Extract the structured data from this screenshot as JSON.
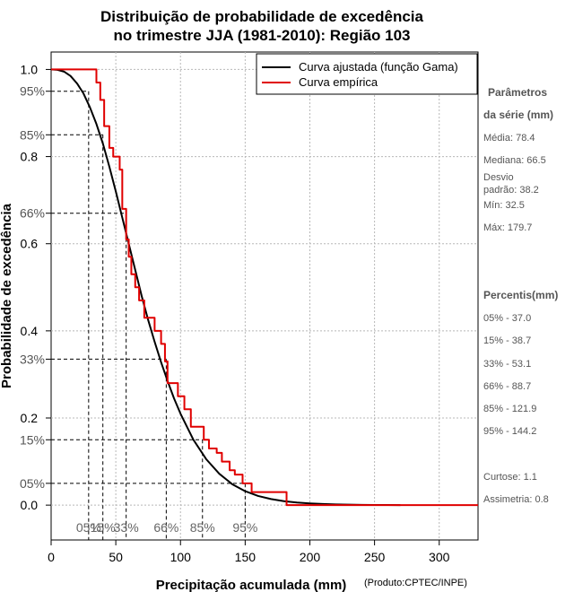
{
  "chart_data": {
    "type": "line",
    "title_line1": "Distribuição de probabilidade de excedência",
    "title_line2": "no trimestre JJA (1981-2010): Região 103",
    "xlabel": "Precipitação acumulada (mm)",
    "ylabel": "Probabilidade de excedência",
    "credit": "(Produto:CPTEC/INPE)",
    "xlim": [
      0,
      330
    ],
    "ylim": [
      -0.08,
      1.04
    ],
    "x_ticks": [
      0,
      50,
      100,
      150,
      200,
      250,
      300
    ],
    "x_tick_labels": [
      "0",
      "50",
      "100",
      "150",
      "200",
      "250",
      "300"
    ],
    "y_ticks": [
      0.0,
      0.2,
      0.4,
      0.6,
      0.8,
      1.0
    ],
    "y_tick_labels": [
      "0.0",
      "0.2",
      "0.4",
      "0.6",
      "0.8",
      "1.0"
    ],
    "grid": true,
    "legend_position": "top-right",
    "legend": [
      {
        "label": "Curva ajustada (função Gama)",
        "color": "#000000"
      },
      {
        "label": "Curva empírica",
        "color": "#e00000"
      }
    ],
    "series": [
      {
        "name": "Curva ajustada (função Gama)",
        "color": "#000000",
        "x": [
          0,
          5,
          10,
          15,
          20,
          25,
          30,
          35,
          40,
          45,
          50,
          55,
          60,
          65,
          70,
          75,
          80,
          85,
          90,
          95,
          100,
          110,
          120,
          130,
          140,
          150,
          160,
          170,
          180,
          190,
          200,
          210,
          220,
          230,
          240,
          250,
          260,
          270
        ],
        "y": [
          1.0,
          0.999,
          0.995,
          0.985,
          0.968,
          0.945,
          0.913,
          0.875,
          0.83,
          0.777,
          0.72,
          0.66,
          0.6,
          0.54,
          0.48,
          0.425,
          0.375,
          0.328,
          0.285,
          0.245,
          0.21,
          0.15,
          0.105,
          0.072,
          0.048,
          0.032,
          0.021,
          0.014,
          0.009,
          0.006,
          0.004,
          0.0025,
          0.0016,
          0.001,
          0.0006,
          0.0004,
          0.0002,
          0.0001
        ]
      },
      {
        "name": "Curva empírica",
        "color": "#e00000",
        "x": [
          0,
          32,
          35,
          38,
          41,
          45,
          48,
          53,
          55,
          58,
          60,
          62,
          65,
          68,
          72,
          78,
          80,
          85,
          88,
          90,
          95,
          98,
          103,
          108,
          112,
          118,
          122,
          128,
          132,
          138,
          142,
          148,
          155,
          170,
          180,
          182,
          330
        ],
        "y": [
          1.0,
          1.0,
          0.97,
          0.93,
          0.87,
          0.82,
          0.8,
          0.77,
          0.68,
          0.61,
          0.57,
          0.53,
          0.5,
          0.47,
          0.43,
          0.43,
          0.4,
          0.37,
          0.33,
          0.28,
          0.28,
          0.25,
          0.22,
          0.18,
          0.18,
          0.15,
          0.13,
          0.12,
          0.1,
          0.08,
          0.07,
          0.05,
          0.03,
          0.03,
          0.03,
          0.0,
          0.0
        ]
      }
    ],
    "percentile_markers": [
      {
        "label": "05%",
        "p": 0.95,
        "x": 29
      },
      {
        "label": "15%",
        "p": 0.85,
        "x": 40
      },
      {
        "label": "33%",
        "p": 0.67,
        "x": 58
      },
      {
        "label": "66%",
        "p": 0.335,
        "x": 89
      },
      {
        "label": "85%",
        "p": 0.15,
        "x": 117
      },
      {
        "label": "95%",
        "p": 0.05,
        "x": 150
      }
    ],
    "y_percent_labels": [
      {
        "label": "95%",
        "p": 0.95
      },
      {
        "label": "85%",
        "p": 0.85
      },
      {
        "label": "66%",
        "p": 0.67
      },
      {
        "label": "33%",
        "p": 0.335
      },
      {
        "label": "15%",
        "p": 0.15
      },
      {
        "label": "05%",
        "p": 0.05
      }
    ]
  },
  "sidebar": {
    "params_title_line1": "Parâmetros",
    "params_title_line2": "da série (mm)",
    "media": "Média: 78.4",
    "mediana": "Mediana: 66.5",
    "desvio_line1": "Desvio",
    "desvio_line2": "padrão: 38.2",
    "min": "Mín: 32.5",
    "max": "Máx: 179.7",
    "percentis_title": "Percentis(mm)",
    "p05": "05% - 37.0",
    "p15": "15% - 38.7",
    "p33": "33% - 53.1",
    "p66": "66% - 88.7",
    "p85": "85% - 121.9",
    "p95": "95% - 144.2",
    "curtose": "Curtose: 1.1",
    "assimetria": "Assimetria: 0.8"
  }
}
